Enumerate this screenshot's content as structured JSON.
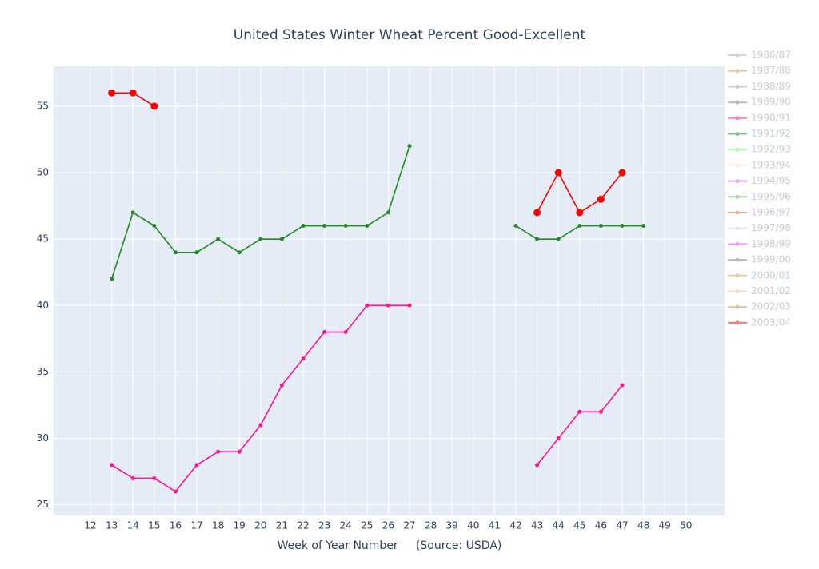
{
  "chart_data": {
    "type": "line",
    "title": "United States Winter Wheat Percent Good-Excellent",
    "x_label": "Week of Year Number     (Source: USDA)",
    "categories": [
      "12",
      "13",
      "14",
      "15",
      "16",
      "17",
      "18",
      "19",
      "20",
      "21",
      "22",
      "23",
      "24",
      "25",
      "26",
      "27",
      "28",
      "39",
      "40",
      "41",
      "42",
      "43",
      "44",
      "45",
      "46",
      "47",
      "48",
      "49",
      "50"
    ],
    "ylim": [
      24.2,
      58
    ],
    "yticks": [
      25,
      30,
      35,
      40,
      45,
      50,
      55
    ],
    "grid": true,
    "legend": "right",
    "series": [
      {
        "name": "1986/87",
        "color": "#a0b4c8",
        "values": [
          null,
          null,
          null,
          null,
          null,
          null,
          null,
          null,
          null,
          null,
          null,
          null,
          null,
          null,
          null,
          null,
          null,
          null,
          null,
          null,
          null,
          null,
          null,
          null,
          null,
          null,
          null,
          null,
          null
        ]
      },
      {
        "name": "1987/88",
        "color": "#c8a060",
        "values": [
          null,
          null,
          null,
          null,
          null,
          null,
          null,
          null,
          null,
          null,
          null,
          null,
          null,
          null,
          null,
          null,
          null,
          null,
          null,
          null,
          null,
          null,
          null,
          null,
          null,
          null,
          null,
          null,
          null
        ]
      },
      {
        "name": "1988/89",
        "color": "#b090c8",
        "values": [
          null,
          null,
          null,
          null,
          null,
          null,
          null,
          null,
          null,
          null,
          null,
          null,
          null,
          null,
          null,
          null,
          null,
          null,
          null,
          null,
          null,
          null,
          null,
          null,
          null,
          null,
          null,
          null,
          null
        ]
      },
      {
        "name": "1989/90",
        "color": "#808090",
        "values": [
          null,
          null,
          null,
          null,
          null,
          null,
          null,
          null,
          null,
          null,
          null,
          null,
          null,
          null,
          null,
          null,
          null,
          null,
          null,
          null,
          null,
          null,
          null,
          null,
          null,
          null,
          null,
          null,
          null
        ]
      },
      {
        "name": "1990/91",
        "color": "#ff1493",
        "values": [
          null,
          28,
          27,
          27,
          26,
          28,
          29,
          29,
          31,
          34,
          36,
          38,
          38,
          40,
          40,
          40,
          null,
          null,
          null,
          null,
          null,
          28,
          30,
          32,
          32,
          34,
          null,
          null,
          null
        ]
      },
      {
        "name": "1991/92",
        "color": "#228b22",
        "values": [
          null,
          42,
          47,
          46,
          44,
          44,
          45,
          44,
          45,
          45,
          46,
          46,
          46,
          46,
          47,
          52,
          null,
          null,
          null,
          null,
          46,
          45,
          45,
          46,
          46,
          46,
          46,
          null,
          null
        ]
      },
      {
        "name": "1992/93",
        "color": "#66ff66",
        "values": [
          null,
          null,
          null,
          null,
          null,
          null,
          null,
          null,
          null,
          null,
          null,
          null,
          null,
          null,
          null,
          null,
          null,
          null,
          null,
          null,
          null,
          null,
          null,
          null,
          null,
          null,
          null,
          null,
          null
        ]
      },
      {
        "name": "1993/94",
        "color": "#ffe4c4",
        "values": [
          null,
          null,
          null,
          null,
          null,
          null,
          null,
          null,
          null,
          null,
          null,
          null,
          null,
          null,
          null,
          null,
          null,
          null,
          null,
          null,
          null,
          null,
          null,
          null,
          null,
          null,
          null,
          null,
          null
        ]
      },
      {
        "name": "1994/95",
        "color": "#cc66ee",
        "values": [
          null,
          null,
          null,
          null,
          null,
          null,
          null,
          null,
          null,
          null,
          null,
          null,
          null,
          null,
          null,
          null,
          null,
          null,
          null,
          null,
          null,
          null,
          null,
          null,
          null,
          null,
          null,
          null,
          null
        ]
      },
      {
        "name": "1995/96",
        "color": "#55bb55",
        "values": [
          null,
          null,
          null,
          null,
          null,
          null,
          null,
          null,
          null,
          null,
          null,
          null,
          null,
          null,
          null,
          null,
          null,
          null,
          null,
          null,
          null,
          null,
          null,
          null,
          null,
          null,
          null,
          null,
          null
        ]
      },
      {
        "name": "1996/97",
        "color": "#e07050",
        "values": [
          null,
          null,
          null,
          null,
          null,
          null,
          null,
          null,
          null,
          null,
          null,
          null,
          null,
          null,
          null,
          null,
          null,
          null,
          null,
          null,
          null,
          null,
          null,
          null,
          null,
          null,
          null,
          null,
          null
        ]
      },
      {
        "name": "1997/98",
        "color": "#d8c8f0",
        "values": [
          null,
          null,
          null,
          null,
          null,
          null,
          null,
          null,
          null,
          null,
          null,
          null,
          null,
          null,
          null,
          null,
          null,
          null,
          null,
          null,
          null,
          null,
          null,
          null,
          null,
          null,
          null,
          null,
          null
        ]
      },
      {
        "name": "1998/99",
        "color": "#ee44ee",
        "values": [
          null,
          null,
          null,
          null,
          null,
          null,
          null,
          null,
          null,
          null,
          null,
          null,
          null,
          null,
          null,
          null,
          null,
          null,
          null,
          null,
          null,
          null,
          null,
          null,
          null,
          null,
          null,
          null,
          null
        ]
      },
      {
        "name": "1999/00",
        "color": "#7080a0",
        "values": [
          null,
          null,
          null,
          null,
          null,
          null,
          null,
          null,
          null,
          null,
          null,
          null,
          null,
          null,
          null,
          null,
          null,
          null,
          null,
          null,
          null,
          null,
          null,
          null,
          null,
          null,
          null,
          null,
          null
        ]
      },
      {
        "name": "2000/01",
        "color": "#e0a060",
        "values": [
          null,
          null,
          null,
          null,
          null,
          null,
          null,
          null,
          null,
          null,
          null,
          null,
          null,
          null,
          null,
          null,
          null,
          null,
          null,
          null,
          null,
          null,
          null,
          null,
          null,
          null,
          null,
          null,
          null
        ]
      },
      {
        "name": "2001/02",
        "color": "#f0b8a8",
        "values": [
          null,
          null,
          null,
          null,
          null,
          null,
          null,
          null,
          null,
          null,
          null,
          null,
          null,
          null,
          null,
          null,
          null,
          null,
          null,
          null,
          null,
          null,
          null,
          null,
          null,
          null,
          null,
          null,
          null
        ]
      },
      {
        "name": "2002/03",
        "color": "#b89050",
        "values": [
          null,
          null,
          null,
          null,
          null,
          null,
          null,
          null,
          null,
          null,
          null,
          null,
          null,
          null,
          null,
          null,
          null,
          null,
          null,
          null,
          null,
          null,
          null,
          null,
          null,
          null,
          null,
          null,
          null
        ]
      },
      {
        "name": "2003/04",
        "color": "#ff0000",
        "values": [
          null,
          56,
          56,
          55,
          null,
          null,
          null,
          null,
          null,
          null,
          null,
          null,
          null,
          null,
          null,
          null,
          null,
          null,
          null,
          null,
          null,
          47,
          50,
          47,
          48,
          50,
          null,
          null,
          null
        ]
      }
    ]
  }
}
